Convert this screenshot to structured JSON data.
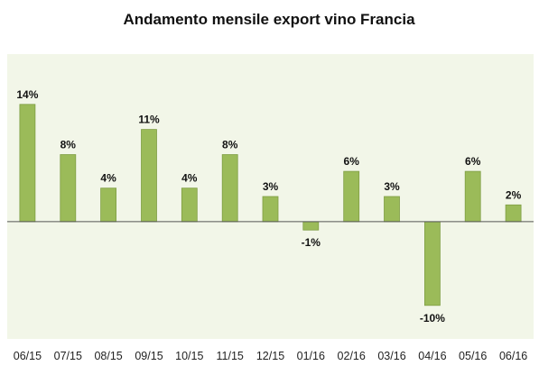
{
  "chart_data": {
    "type": "bar",
    "title": "Andamento mensile export vino Francia",
    "xlabel": "",
    "ylabel": "",
    "categories": [
      "06/15",
      "07/15",
      "08/15",
      "09/15",
      "10/15",
      "11/15",
      "12/15",
      "01/16",
      "02/16",
      "03/16",
      "04/16",
      "05/16",
      "06/16"
    ],
    "values": [
      14,
      8,
      4,
      11,
      4,
      8,
      3,
      -1,
      6,
      3,
      -10,
      6,
      2
    ],
    "data_labels": [
      "14%",
      "8%",
      "4%",
      "11%",
      "4%",
      "8%",
      "3%",
      "-1%",
      "6%",
      "3%",
      "-10%",
      "6%",
      "2%"
    ],
    "ylim": [
      -14,
      20
    ],
    "unit": "%",
    "grid": false,
    "legend": "none",
    "colors": {
      "bar": "#9bbb59",
      "bar_edge": "#7f9e44",
      "plot_background": "#f2f6e8",
      "zero_line": "#555555"
    }
  }
}
